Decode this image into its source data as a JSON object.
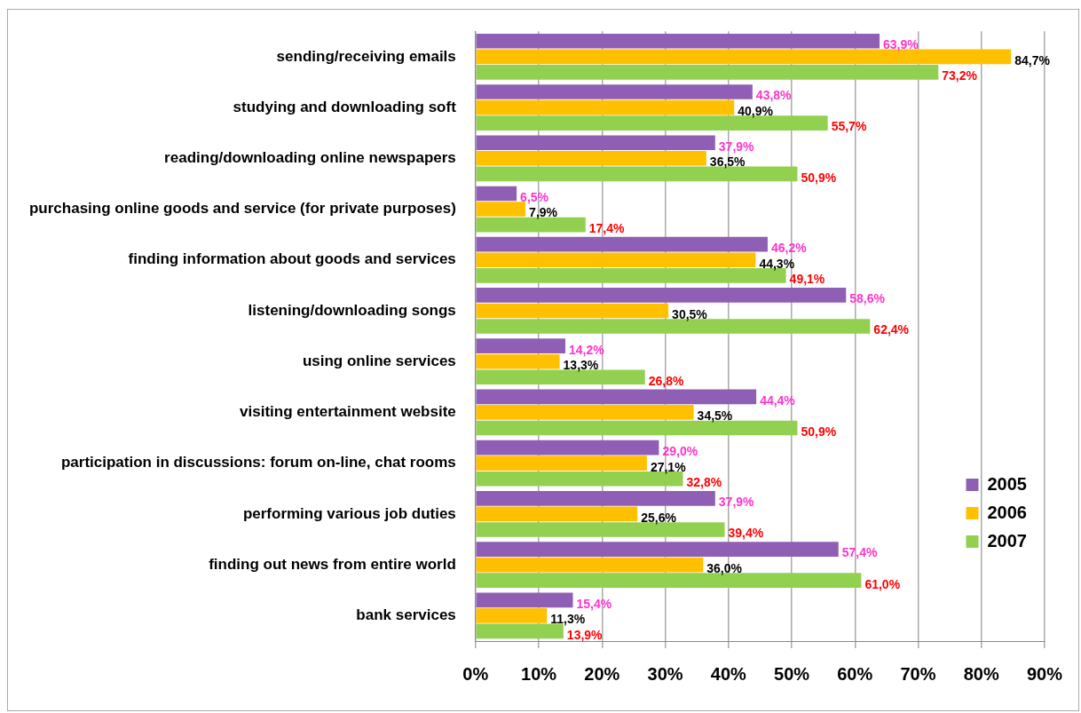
{
  "chart_data": {
    "type": "bar",
    "orientation": "horizontal",
    "categories": [
      "sending/receiving emails",
      "studying and downloading soft",
      "reading/downloading online newspapers",
      "purchasing online goods and service (for private purposes)",
      "finding information about goods and services",
      "listening/downloading songs",
      "using online services",
      "visiting entertainment website",
      "participation in discussions: forum on-line, chat rooms",
      "performing various job duties",
      "finding out news from entire world",
      "bank services"
    ],
    "series": [
      {
        "name": "2005",
        "color": "#8e5fb5",
        "values": [
          63.9,
          43.8,
          37.9,
          6.5,
          46.2,
          58.6,
          14.2,
          44.4,
          29.0,
          37.9,
          57.4,
          15.4
        ],
        "value_labels": [
          "63,9%",
          "43,8%",
          "37,9%",
          "6,5%",
          "46,2%",
          "58,6%",
          "14,2%",
          "44,4%",
          "29,0%",
          "37,9%",
          "57,4%",
          "15,4%"
        ]
      },
      {
        "name": "2006",
        "color": "#ffc000",
        "values": [
          84.7,
          40.9,
          36.5,
          7.9,
          44.3,
          30.5,
          13.3,
          34.5,
          27.1,
          25.6,
          36.0,
          11.3
        ],
        "value_labels": [
          "84,7%",
          "40,9%",
          "36,5%",
          "7,9%",
          "44,3%",
          "30,5%",
          "13,3%",
          "34,5%",
          "27,1%",
          "25,6%",
          "36,0%",
          "11,3%"
        ]
      },
      {
        "name": "2007",
        "color": "#92d050",
        "values": [
          73.2,
          55.7,
          50.9,
          17.4,
          49.1,
          62.4,
          26.8,
          50.9,
          32.8,
          39.4,
          61.0,
          13.9
        ],
        "value_labels": [
          "73,2%",
          "55,7%",
          "50,9%",
          "17,4%",
          "49,1%",
          "62,4%",
          "26,8%",
          "50,9%",
          "32,8%",
          "39,4%",
          "61,0%",
          "13,9%"
        ]
      }
    ],
    "xlim": [
      0,
      90
    ],
    "xticks": [
      {
        "value": 0,
        "label": "0%"
      },
      {
        "value": 10,
        "label": "10%"
      },
      {
        "value": 20,
        "label": "20%"
      },
      {
        "value": 30,
        "label": "30%"
      },
      {
        "value": 40,
        "label": "40%"
      },
      {
        "value": 50,
        "label": "50%"
      },
      {
        "value": 60,
        "label": "60%"
      },
      {
        "value": 70,
        "label": "70%"
      },
      {
        "value": 80,
        "label": "80%"
      },
      {
        "value": 90,
        "label": "90%"
      }
    ],
    "grid": "x",
    "legend": "bottom right"
  }
}
